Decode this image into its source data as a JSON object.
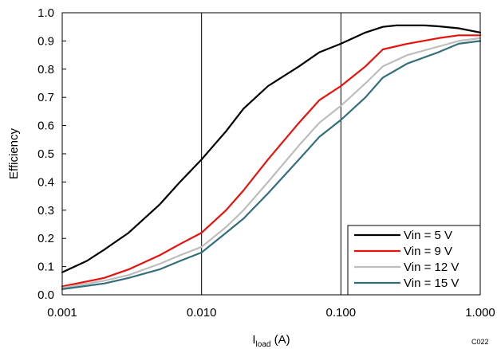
{
  "chart_data": {
    "type": "line",
    "x_scale": "log",
    "xlim": [
      0.001,
      1.0
    ],
    "ylim": [
      0.0,
      1.0
    ],
    "x_ticks": [
      "0.001",
      "0.010",
      "0.100",
      "1.000"
    ],
    "y_ticks": [
      "0.0",
      "0.1",
      "0.2",
      "0.3",
      "0.4",
      "0.5",
      "0.6",
      "0.7",
      "0.8",
      "0.9",
      "1.0"
    ],
    "ylabel": "Efficiency",
    "xlabel_main": "I",
    "xlabel_sub": "load",
    "xlabel_unit": " (A)",
    "grid": "vertical major lines at each decade",
    "legend_position": "bottom-right",
    "code": "C022",
    "series": [
      {
        "name": "Vin = 5 V",
        "color": "#000000",
        "x": [
          0.001,
          0.0015,
          0.002,
          0.003,
          0.005,
          0.007,
          0.01,
          0.015,
          0.02,
          0.03,
          0.05,
          0.07,
          0.1,
          0.15,
          0.2,
          0.25,
          0.3,
          0.4,
          0.5,
          0.7,
          1.0
        ],
        "y": [
          0.08,
          0.12,
          0.16,
          0.22,
          0.32,
          0.4,
          0.48,
          0.58,
          0.66,
          0.74,
          0.81,
          0.86,
          0.89,
          0.93,
          0.95,
          0.955,
          0.955,
          0.955,
          0.952,
          0.945,
          0.93
        ]
      },
      {
        "name": "Vin = 9 V",
        "color": "#e8120c",
        "x": [
          0.001,
          0.002,
          0.003,
          0.005,
          0.007,
          0.01,
          0.015,
          0.02,
          0.03,
          0.05,
          0.07,
          0.1,
          0.15,
          0.2,
          0.3,
          0.5,
          0.7,
          1.0
        ],
        "y": [
          0.03,
          0.06,
          0.09,
          0.14,
          0.18,
          0.22,
          0.3,
          0.37,
          0.48,
          0.61,
          0.69,
          0.74,
          0.81,
          0.87,
          0.89,
          0.91,
          0.92,
          0.92
        ]
      },
      {
        "name": "Vin = 12 V",
        "color": "#bdbdbd",
        "x": [
          0.001,
          0.002,
          0.003,
          0.005,
          0.007,
          0.01,
          0.015,
          0.02,
          0.03,
          0.05,
          0.07,
          0.1,
          0.15,
          0.2,
          0.3,
          0.5,
          0.7,
          1.0
        ],
        "y": [
          0.025,
          0.05,
          0.07,
          0.11,
          0.14,
          0.17,
          0.24,
          0.3,
          0.4,
          0.53,
          0.61,
          0.67,
          0.75,
          0.81,
          0.85,
          0.88,
          0.9,
          0.91
        ]
      },
      {
        "name": "Vin = 15 V",
        "color": "#336e7b",
        "x": [
          0.001,
          0.002,
          0.003,
          0.005,
          0.007,
          0.01,
          0.015,
          0.02,
          0.03,
          0.05,
          0.07,
          0.1,
          0.15,
          0.2,
          0.3,
          0.5,
          0.7,
          1.0
        ],
        "y": [
          0.02,
          0.04,
          0.06,
          0.09,
          0.12,
          0.15,
          0.22,
          0.27,
          0.36,
          0.48,
          0.56,
          0.62,
          0.7,
          0.77,
          0.82,
          0.86,
          0.89,
          0.9
        ]
      }
    ]
  }
}
